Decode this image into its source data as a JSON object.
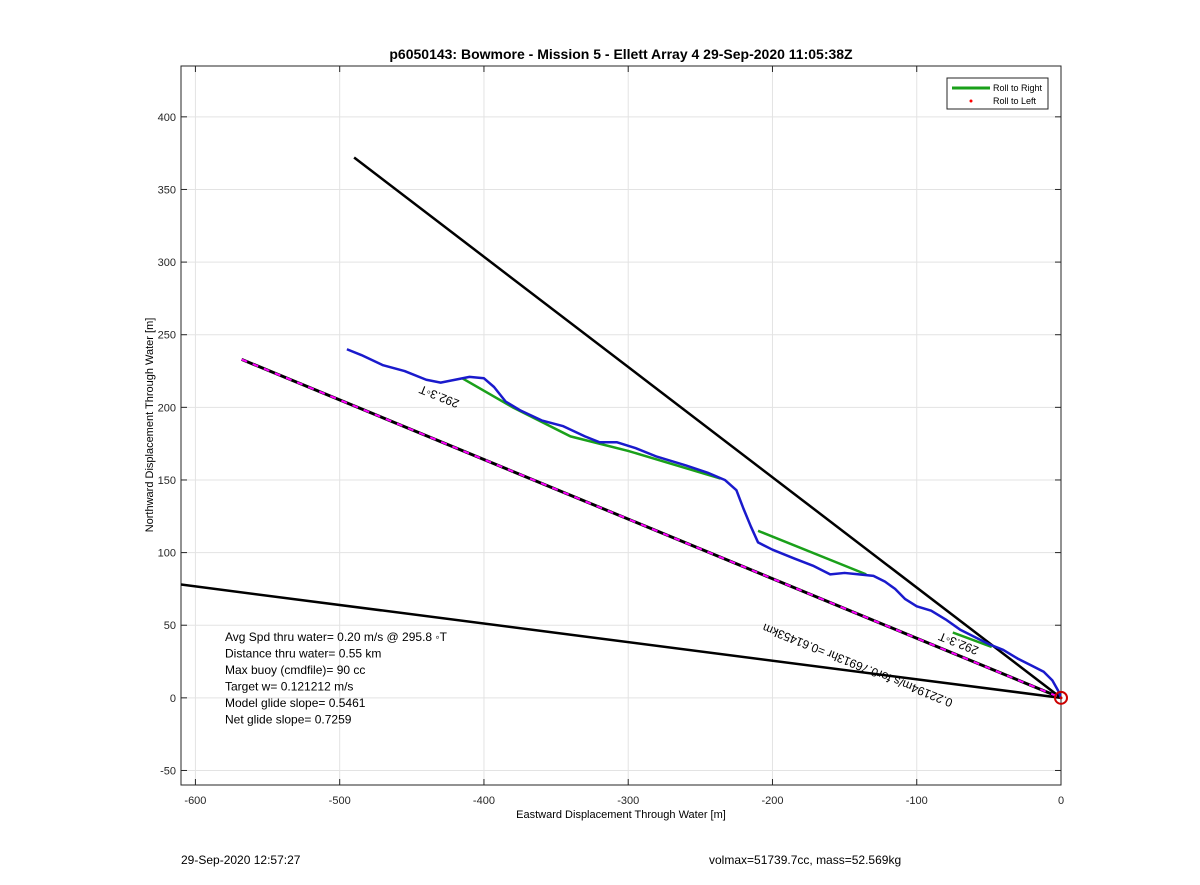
{
  "chart_data": {
    "type": "line",
    "title": "p6050143: Bowmore - Mission 5 - Ellett Array 4 29-Sep-2020 11:05:38Z",
    "xlabel": "Eastward Displacement Through Water [m]",
    "ylabel": "Northward Displacement Through Water [m]",
    "xlim": [
      -610,
      0
    ],
    "ylim": [
      -60,
      435
    ],
    "xticks": [
      -600,
      -500,
      -400,
      -300,
      -200,
      -100,
      0
    ],
    "yticks": [
      -50,
      0,
      50,
      100,
      150,
      200,
      250,
      300,
      350,
      400
    ],
    "grid": true,
    "legend_position": "top-right",
    "legend": [
      {
        "label": "Roll to Right",
        "color": "#1aa01a",
        "style": "line"
      },
      {
        "label": "Roll to Left",
        "color": "#ff0000",
        "style": "dot"
      }
    ],
    "series": [
      {
        "name": "Roll to Right",
        "color": "#1aa01a",
        "segments": [
          [
            [
              -415,
              220
            ],
            [
              -380,
              200
            ],
            [
              -340,
              180
            ],
            [
              -300,
              170
            ],
            [
              -236,
              151
            ]
          ],
          [
            [
              -210,
              115
            ],
            [
              -135,
              85
            ]
          ],
          [
            [
              -75,
              45
            ],
            [
              -48,
              35
            ]
          ]
        ]
      },
      {
        "color": "#1a1acc",
        "points": [
          [
            -495,
            240
          ],
          [
            -485,
            236
          ],
          [
            -470,
            229
          ],
          [
            -455,
            225
          ],
          [
            -440,
            219
          ],
          [
            -430,
            217
          ],
          [
            -420,
            219
          ],
          [
            -410,
            221
          ],
          [
            -400,
            220
          ],
          [
            -393,
            214
          ],
          [
            -385,
            204
          ],
          [
            -375,
            198
          ],
          [
            -360,
            191
          ],
          [
            -345,
            187
          ],
          [
            -330,
            180
          ],
          [
            -320,
            176
          ],
          [
            -308,
            176
          ],
          [
            -295,
            172
          ],
          [
            -280,
            166
          ],
          [
            -260,
            160
          ],
          [
            -245,
            155
          ],
          [
            -233,
            150
          ],
          [
            -225,
            143
          ],
          [
            -220,
            130
          ],
          [
            -215,
            118
          ],
          [
            -210,
            107
          ],
          [
            -200,
            102
          ],
          [
            -185,
            96
          ],
          [
            -172,
            91
          ],
          [
            -160,
            85
          ],
          [
            -150,
            86
          ],
          [
            -140,
            85
          ],
          [
            -130,
            84
          ],
          [
            -122,
            80
          ],
          [
            -115,
            75
          ],
          [
            -108,
            68
          ],
          [
            -100,
            63
          ],
          [
            -90,
            60
          ],
          [
            -80,
            54
          ],
          [
            -70,
            47
          ],
          [
            -60,
            42
          ],
          [
            -50,
            37
          ],
          [
            -40,
            33
          ],
          [
            -30,
            27
          ],
          [
            -20,
            22
          ],
          [
            -12,
            18
          ],
          [
            -6,
            12
          ],
          [
            -2,
            5
          ],
          [
            0,
            0
          ]
        ]
      },
      {
        "color": "#000000",
        "points": [
          [
            -490,
            372
          ],
          [
            0,
            0
          ]
        ]
      },
      {
        "color": "#000000",
        "points": [
          [
            -610,
            78
          ],
          [
            0,
            0
          ]
        ]
      },
      {
        "color": "#000000",
        "dash_color": "#ff00ff",
        "points": [
          [
            -568,
            233
          ],
          [
            0,
            0
          ]
        ]
      }
    ],
    "annotations": [
      {
        "text": "292.3◦T",
        "x": -430,
        "y": 210,
        "rotation": 202
      },
      {
        "text": "292.3◦T",
        "x": -70,
        "y": 40,
        "rotation": 202
      },
      {
        "text": "0.22194m/s for0.76913hr =0.61453km",
        "x": -140,
        "y": 25,
        "rotation": 202
      }
    ],
    "end_marker": {
      "x": 0,
      "y": 0,
      "color": "#cc0000"
    },
    "stats": [
      "Avg Spd thru water=  0.20 m/s @ 295.8 ◦T",
      "Distance thru water=  0.55 km",
      "Max buoy (cmdfile)= 90 cc",
      "Target w= 0.121212 m/s",
      "Model glide slope= 0.5461",
      "Net glide slope= 0.7259"
    ]
  },
  "footer": {
    "timestamp": "29-Sep-2020 12:57:27",
    "params": "volmax=51739.7cc, mass=52.569kg"
  }
}
